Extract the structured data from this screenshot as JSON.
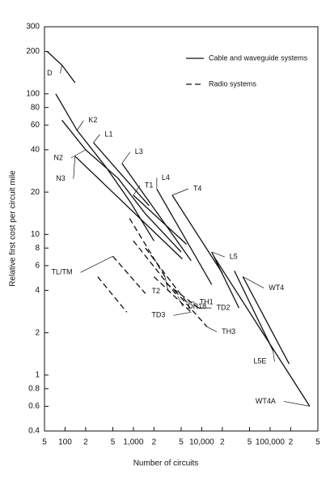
{
  "chart_data": {
    "type": "line",
    "x_label": "Number of circuits",
    "y_label": "Relative first cost per circuit mile",
    "log_x": true,
    "log_y": true,
    "xlim": [
      50,
      500000
    ],
    "xticks": [
      {
        "value": 50,
        "label": "5"
      },
      100,
      {
        "value": 200,
        "label": "2"
      },
      {
        "value": 500,
        "label": "5"
      },
      {
        "value": 1000,
        "label": "1,000"
      },
      {
        "value": 2000,
        "label": "2"
      },
      {
        "value": 5000,
        "label": "5"
      },
      {
        "value": 10000,
        "label": "10,000"
      },
      {
        "value": 20000,
        "label": "2"
      },
      {
        "value": 50000,
        "label": "5"
      },
      {
        "value": 100000,
        "label": "100,000"
      },
      {
        "value": 200000,
        "label": "2"
      },
      {
        "value": 500000,
        "label": "5"
      }
    ],
    "ylim": [
      0.4,
      300
    ],
    "yticks": [
      0.4,
      0.6,
      0.8,
      1,
      2,
      4,
      6,
      8,
      10,
      20,
      40,
      60,
      80,
      100,
      200,
      300
    ],
    "legend": [
      {
        "label": "Cable and waveguide systems",
        "style": "solid"
      },
      {
        "label": "Radio systems",
        "style": "dashed"
      }
    ],
    "color": "#111111",
    "lines": [
      {
        "label": "D",
        "style": "solid",
        "x": [
          55,
          90,
          140
        ],
        "y": [
          200,
          160,
          120
        ]
      },
      {
        "label": "K2",
        "style": "solid",
        "x": [
          73,
          150,
          400,
          900,
          2000
        ],
        "y": [
          100,
          55,
          30,
          17,
          9
        ]
      },
      {
        "label": "N2",
        "style": "solid",
        "x": [
          90,
          200,
          600,
          1500,
          5000
        ],
        "y": [
          65,
          40,
          25,
          14,
          7.5
        ]
      },
      {
        "label": "N3",
        "style": "solid",
        "x": [
          140,
          5200
        ],
        "y": [
          36,
          6.7
        ]
      },
      {
        "label": "L1",
        "style": "solid",
        "x": [
          260,
          700,
          1700
        ],
        "y": [
          45,
          26,
          16
        ]
      },
      {
        "label": "L3",
        "style": "solid",
        "x": [
          680,
          7000
        ],
        "y": [
          32,
          6.5
        ]
      },
      {
        "label": "T1",
        "style": "solid",
        "x": [
          1000,
          6000
        ],
        "y": [
          19,
          8.5
        ]
      },
      {
        "label": "L4",
        "style": "solid",
        "x": [
          2200,
          14000
        ],
        "y": [
          21,
          4.4
        ]
      },
      {
        "label": "T4",
        "style": "solid",
        "x": [
          3700,
          20000
        ],
        "y": [
          19,
          5.3
        ]
      },
      {
        "label": "T2",
        "style": "dashed",
        "x": [
          880,
          2900
        ],
        "y": [
          13,
          5
        ]
      },
      {
        "label": "DR18",
        "style": "dashed",
        "x": [
          1000,
          4500
        ],
        "y": [
          9,
          3.6
        ]
      },
      {
        "label": "TH1",
        "style": "dashed",
        "x": [
          1500,
          6000
        ],
        "y": [
          8,
          3.3
        ]
      },
      {
        "label": "TL/TM",
        "style": "dashed",
        "x": [
          500,
          1500
        ],
        "y": [
          7,
          3.8
        ]
      },
      {
        "style": "dashed",
        "x": [
          300,
          800
        ],
        "y": [
          5,
          2.8
        ]
      },
      {
        "label": "TD3",
        "style": "dashed",
        "x": [
          2000,
          7000
        ],
        "y": [
          5,
          2.8
        ]
      },
      {
        "label": "TD2",
        "style": "dashed",
        "x": [
          3000,
          9000
        ],
        "y": [
          4.5,
          3
        ]
      },
      {
        "label": "TH3",
        "style": "dashed",
        "x": [
          4000,
          12000
        ],
        "y": [
          4,
          2.2
        ]
      },
      {
        "label": "L5",
        "style": "solid",
        "x": [
          14000,
          35000
        ],
        "y": [
          7.5,
          3
        ]
      },
      {
        "label": "L5E",
        "style": "solid",
        "x": [
          30000,
          110000
        ],
        "y": [
          5.5,
          1.5
        ]
      },
      {
        "label": "WT4",
        "style": "solid",
        "x": [
          40000,
          190000
        ],
        "y": [
          5,
          1.2
        ]
      },
      {
        "label": "WT4A",
        "style": "solid",
        "x": [
          15000,
          380000
        ],
        "y": [
          7,
          0.6
        ]
      }
    ]
  }
}
